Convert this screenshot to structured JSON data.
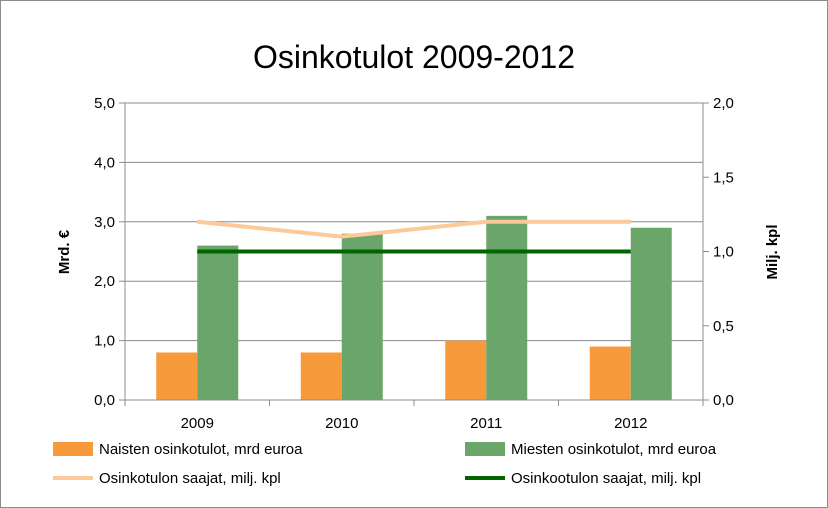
{
  "chart_data": {
    "type": "bar",
    "title": "Osinkotulot 2009-2012",
    "ylabel": "Mrd. €",
    "y2label": "Milj. kpl",
    "categories": [
      "2009",
      "2010",
      "2011",
      "2012"
    ],
    "ylim": [
      0,
      5
    ],
    "y2lim": [
      0,
      2
    ],
    "yticks": [
      "0,0",
      "1,0",
      "2,0",
      "3,0",
      "4,0",
      "5,0"
    ],
    "y2ticks": [
      "0,0",
      "0,5",
      "1,0",
      "1,5",
      "2,0"
    ],
    "grid": true,
    "legend_position": "bottom",
    "series": [
      {
        "name": "Naisten osinkotulot, mrd  euroa",
        "kind": "bar",
        "axis": "left",
        "color": "#f79a3b",
        "values": [
          0.8,
          0.8,
          1.0,
          0.9
        ]
      },
      {
        "name": "Miesten osinkotulot, mrd  euroa",
        "kind": "bar",
        "axis": "left",
        "color": "#6aa56a",
        "values": [
          2.6,
          2.8,
          3.1,
          2.9
        ]
      },
      {
        "name": "Osinkotulon saajat, milj. kpl",
        "kind": "line",
        "axis": "right",
        "color": "#fcc99a",
        "values": [
          1.2,
          1.1,
          1.2,
          1.2
        ]
      },
      {
        "name": "Osinkootulon saajat, milj. kpl",
        "kind": "line",
        "axis": "right",
        "color": "#006400",
        "values": [
          1.0,
          1.0,
          1.0,
          1.0
        ]
      }
    ]
  }
}
